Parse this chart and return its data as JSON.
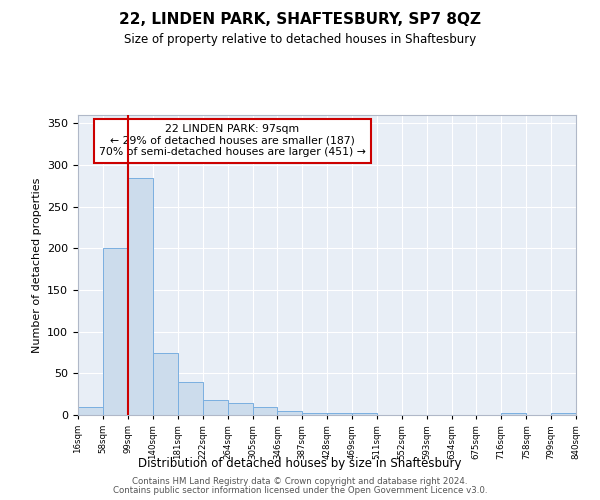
{
  "title_line1": "22, LINDEN PARK, SHAFTESBURY, SP7 8QZ",
  "title_line2": "Size of property relative to detached houses in Shaftesbury",
  "xlabel": "Distribution of detached houses by size in Shaftesbury",
  "ylabel": "Number of detached properties",
  "annotation_line1": "22 LINDEN PARK: 97sqm",
  "annotation_line2": "← 29% of detached houses are smaller (187)",
  "annotation_line3": "70% of semi-detached houses are larger (451) →",
  "bar_edges": [
    16,
    58,
    99,
    140,
    181,
    222,
    264,
    305,
    346,
    387,
    428,
    469,
    511,
    552,
    593,
    634,
    675,
    716,
    758,
    799,
    840
  ],
  "bar_values": [
    10,
    200,
    285,
    75,
    40,
    18,
    15,
    10,
    5,
    3,
    3,
    3,
    0,
    0,
    0,
    0,
    0,
    3,
    0,
    3
  ],
  "bar_color": "#ccdcec",
  "bar_edge_color": "#7aafe0",
  "property_line_x": 99,
  "property_line_color": "#cc0000",
  "ylim": [
    0,
    360
  ],
  "yticks": [
    0,
    50,
    100,
    150,
    200,
    250,
    300,
    350
  ],
  "background_color": "#e8eef6",
  "grid_color": "#ffffff",
  "footer_line1": "Contains HM Land Registry data © Crown copyright and database right 2024.",
  "footer_line2": "Contains public sector information licensed under the Open Government Licence v3.0."
}
